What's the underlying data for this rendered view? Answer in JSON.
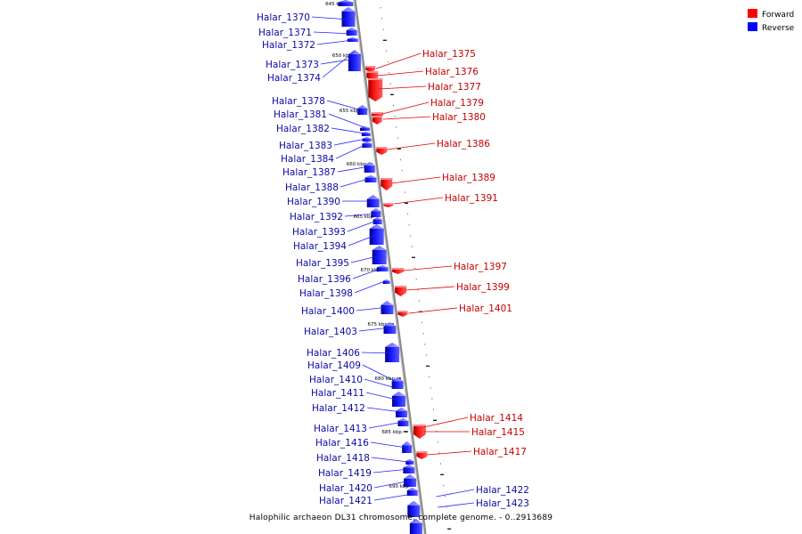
{
  "footer": "Halophilic archaeon DL31 chromosome, complete genome. - 0..2913689",
  "legend": {
    "forward_label": "Forward",
    "reverse_label": "Reverse",
    "forward_color": "#ff0000",
    "reverse_color": "#0000ff"
  },
  "ticks": [
    {
      "label": "645 kbp"
    },
    {
      "label": "650 kbp"
    },
    {
      "label": "655 kbp"
    },
    {
      "label": "660 kbp"
    },
    {
      "label": "665 kbp"
    },
    {
      "label": "670 kbp"
    },
    {
      "label": "675 kbp"
    },
    {
      "label": "680 kbp"
    },
    {
      "label": "685 kbp"
    },
    {
      "label": "690 kbp"
    }
  ],
  "reverse_genes": [
    "Halar_1370",
    "Halar_1371",
    "Halar_1372",
    "Halar_1373",
    "Halar_1374",
    "Halar_1378",
    "Halar_1381",
    "Halar_1382",
    "Halar_1383",
    "Halar_1384",
    "Halar_1387",
    "Halar_1388",
    "Halar_1390",
    "Halar_1392",
    "Halar_1393",
    "Halar_1394",
    "Halar_1395",
    "Halar_1396",
    "Halar_1398",
    "Halar_1400",
    "Halar_1403",
    "Halar_1406",
    "Halar_1409",
    "Halar_1410",
    "Halar_1411",
    "Halar_1412",
    "Halar_1413",
    "Halar_1416",
    "Halar_1418",
    "Halar_1419",
    "Halar_1420",
    "Halar_1421",
    "Halar_1422",
    "Halar_1423"
  ],
  "forward_genes": [
    "Halar_1375",
    "Halar_1376",
    "Halar_1377",
    "Halar_1379",
    "Halar_1380",
    "Halar_1386",
    "Halar_1389",
    "Halar_1391",
    "Halar_1397",
    "Halar_1399",
    "Halar_1401",
    "Halar_1414",
    "Halar_1415",
    "Halar_1417"
  ]
}
